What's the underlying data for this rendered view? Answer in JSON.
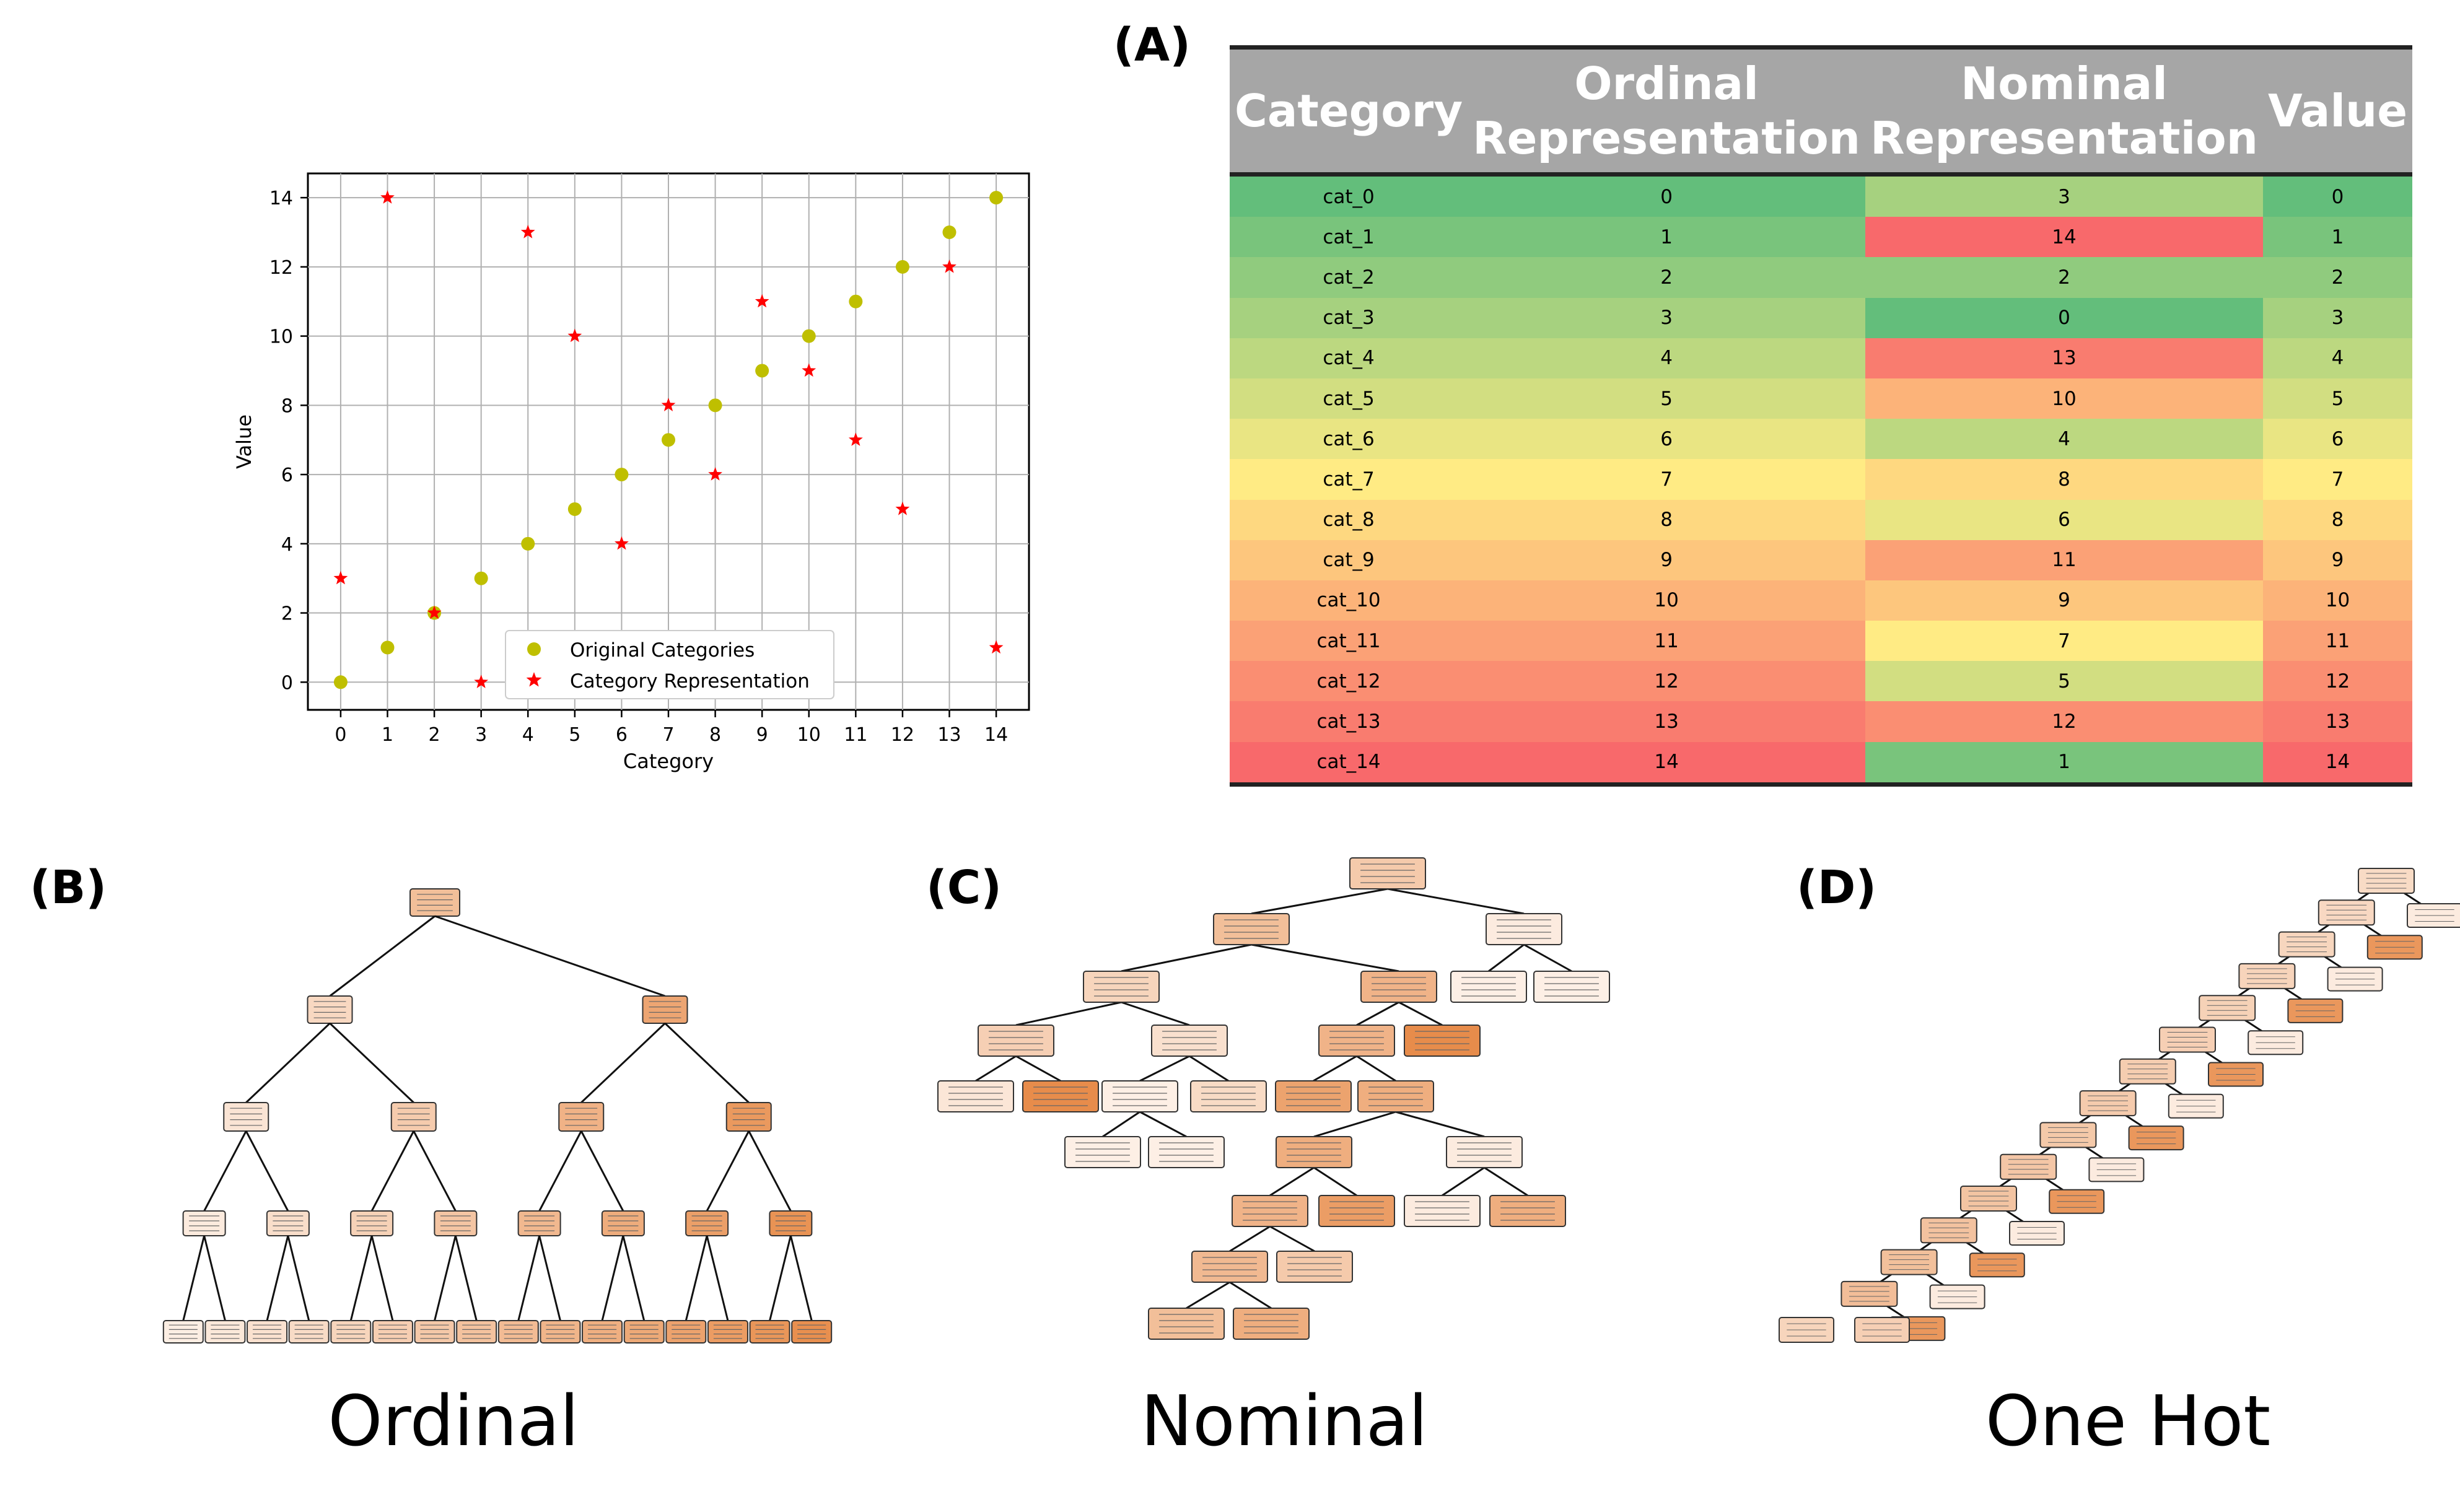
{
  "panel_labels": {
    "a": "(A)",
    "b": "(B)",
    "c": "(C)",
    "d": "(D)"
  },
  "bottom_labels": {
    "ordinal": "Ordinal",
    "nominal": "Nominal",
    "onehot": "One Hot"
  },
  "colors": {
    "original_marker": "#bfbf00",
    "representation_marker": "#ff0000",
    "grid": "#b0b0b0",
    "table_header": "#a6a6a6",
    "heat_low": "#63be7b",
    "heat_mid": "#ffeb84",
    "heat_high": "#f8696b",
    "tree_node_light": "#fdf1e8",
    "tree_node_dark": "#e58139"
  },
  "chart_data": {
    "type": "scatter",
    "xlabel": "Category",
    "ylabel": "Value",
    "xlim": [
      -0.7,
      14.7
    ],
    "ylim": [
      -0.8,
      14.7
    ],
    "xticks": [
      "0",
      "1",
      "2",
      "3",
      "4",
      "5",
      "6",
      "7",
      "8",
      "9",
      "10",
      "11",
      "12",
      "13",
      "14"
    ],
    "yticks": [
      "0",
      "2",
      "4",
      "6",
      "8",
      "10",
      "12",
      "14"
    ],
    "grid": true,
    "legend_position": "lower-center",
    "series": [
      {
        "name": "Original Categories",
        "marker": "circle",
        "x": [
          0,
          1,
          2,
          3,
          4,
          5,
          6,
          7,
          8,
          9,
          10,
          11,
          12,
          13,
          14
        ],
        "y": [
          0,
          1,
          2,
          3,
          4,
          5,
          6,
          7,
          8,
          9,
          10,
          11,
          12,
          13,
          14
        ]
      },
      {
        "name": "Category Representation",
        "marker": "star",
        "x": [
          0,
          1,
          2,
          3,
          4,
          5,
          6,
          7,
          8,
          9,
          10,
          11,
          12,
          13,
          14
        ],
        "y": [
          3,
          14,
          2,
          0,
          13,
          10,
          4,
          8,
          6,
          11,
          9,
          7,
          5,
          12,
          1
        ]
      }
    ]
  },
  "table": {
    "headers": [
      "Category",
      "Ordinal Representation",
      "Nominal Representation",
      "Value"
    ],
    "rows": [
      [
        "cat_0",
        "0",
        "3",
        "0"
      ],
      [
        "cat_1",
        "1",
        "14",
        "1"
      ],
      [
        "cat_2",
        "2",
        "2",
        "2"
      ],
      [
        "cat_3",
        "3",
        "0",
        "3"
      ],
      [
        "cat_4",
        "4",
        "13",
        "4"
      ],
      [
        "cat_5",
        "5",
        "10",
        "5"
      ],
      [
        "cat_6",
        "6",
        "4",
        "6"
      ],
      [
        "cat_7",
        "7",
        "8",
        "7"
      ],
      [
        "cat_8",
        "8",
        "6",
        "8"
      ],
      [
        "cat_9",
        "9",
        "11",
        "9"
      ],
      [
        "cat_10",
        "10",
        "9",
        "10"
      ],
      [
        "cat_11",
        "11",
        "7",
        "11"
      ],
      [
        "cat_12",
        "12",
        "5",
        "12"
      ],
      [
        "cat_13",
        "13",
        "12",
        "13"
      ],
      [
        "cat_14",
        "14",
        "1",
        "14"
      ]
    ]
  }
}
